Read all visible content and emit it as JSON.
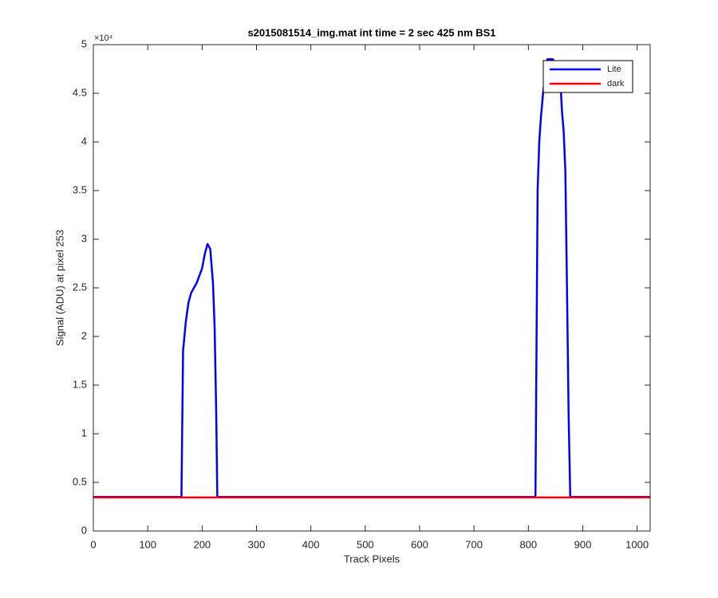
{
  "chart_data": {
    "type": "line",
    "title": "s2015081514_img.mat int time = 2 sec  425 nm BS1",
    "x_label": "Track Pixels",
    "y_label": "Signal (ADU) at pixel 253",
    "y_scale_label": "×10⁴",
    "x": [
      0,
      100,
      162,
      165,
      170,
      175,
      180,
      190,
      200,
      205,
      210,
      215,
      220,
      223,
      226,
      228,
      300,
      400,
      500,
      600,
      700,
      800,
      813,
      817,
      820,
      823,
      827,
      830,
      835,
      840,
      845,
      850,
      855,
      860,
      862,
      865,
      868,
      871,
      874,
      877,
      900,
      1000,
      1024
    ],
    "series": [
      {
        "name": "Lite",
        "color": "#0000ff",
        "values": [
          3500,
          3500,
          3500,
          18500,
          21500,
          23500,
          24500,
          25500,
          27000,
          28500,
          29500,
          29000,
          25500,
          21000,
          12000,
          3500,
          3500,
          3500,
          3500,
          3500,
          3500,
          3500,
          3500,
          35000,
          40000,
          42500,
          45000,
          46500,
          48500,
          48500,
          48500,
          48000,
          46500,
          45000,
          43000,
          41000,
          37000,
          25000,
          12000,
          3500,
          3500,
          3500,
          3500
        ]
      },
      {
        "name": "dark",
        "color": "#ff0000",
        "values": [
          3450,
          3450,
          3450,
          3450,
          3450,
          3450,
          3450,
          3450,
          3450,
          3450,
          3450,
          3450,
          3450,
          3450,
          3450,
          3450,
          3450,
          3450,
          3450,
          3450,
          3450,
          3450,
          3450,
          3450,
          3450,
          3450,
          3450,
          3450,
          3450,
          3450,
          3450,
          3450,
          3450,
          3450,
          3450,
          3450,
          3450,
          3450,
          3450,
          3450,
          3450,
          3450,
          3450
        ]
      }
    ],
    "xlim": [
      0,
      1024
    ],
    "xticks": [
      0,
      100,
      200,
      300,
      400,
      500,
      600,
      700,
      800,
      900,
      1000
    ],
    "ylim": [
      0,
      50000
    ],
    "yticks": [
      0,
      {
        "value": 5000,
        "label": "0.5"
      },
      {
        "value": 10000,
        "label": "1"
      },
      {
        "value": 15000,
        "label": "1.5"
      },
      {
        "value": 20000,
        "label": "2"
      },
      {
        "value": 25000,
        "label": "2.5"
      },
      {
        "value": 30000,
        "label": "3"
      },
      {
        "value": 35000,
        "label": "3.5"
      },
      {
        "value": 40000,
        "label": "4"
      },
      {
        "value": 45000,
        "label": "4.5"
      },
      {
        "value": 50000,
        "label": "5"
      }
    ],
    "grid": false,
    "legend_position": "top-right"
  }
}
